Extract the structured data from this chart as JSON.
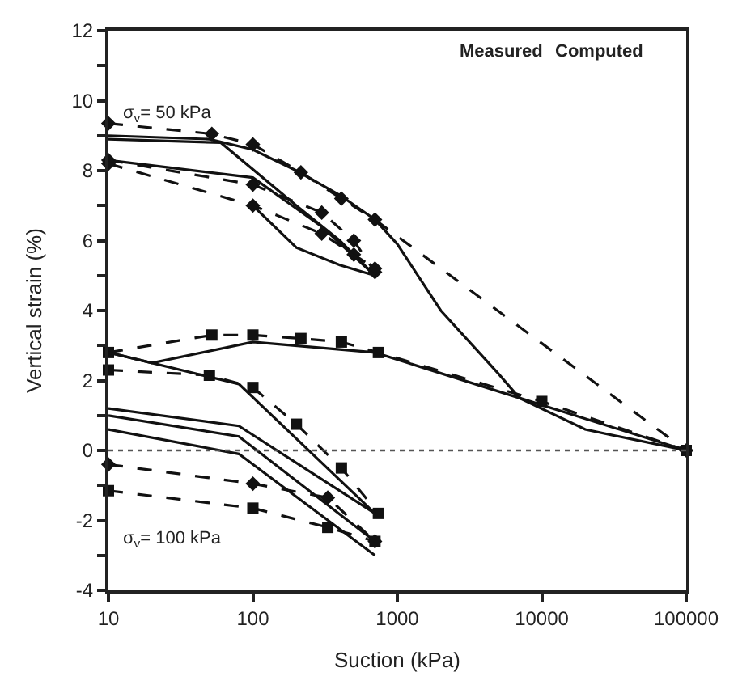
{
  "chart_data": {
    "type": "line",
    "xlabel": "Suction (kPa)",
    "ylabel": "Vertical strain (%)",
    "log": "x",
    "xlim": [
      10,
      100000
    ],
    "xticks": [
      10,
      100,
      1000,
      10000,
      100000
    ],
    "ylim": [
      -4,
      12
    ],
    "yticks": [
      -4,
      {
        "value": -3,
        "label": null
      },
      -2,
      {
        "value": -1,
        "label": null
      },
      0,
      {
        "value": 1,
        "label": null
      },
      2,
      {
        "value": 3,
        "label": null
      },
      4,
      {
        "value": 5,
        "label": null
      },
      6,
      {
        "value": 7,
        "label": null
      },
      8,
      {
        "value": 9,
        "label": null
      },
      10,
      {
        "value": 11,
        "label": null
      },
      12
    ],
    "ref_lines": [
      {
        "axis": "y",
        "value": 0,
        "line_style": "dotted",
        "color": "#555555"
      }
    ],
    "annotations": [
      "σ$_{v}$= 50 kPa",
      "σ$_{v}$= 100 kPa",
      "Measured",
      "Computed"
    ],
    "series": [
      {
        "color": "#111111",
        "marker": "diamond",
        "line_style": "dashed",
        "x": [
          10,
          52,
          100,
          215,
          410,
          700,
          100000
        ],
        "values": [
          9.35,
          9.05,
          8.75,
          7.95,
          7.2,
          6.6,
          0
        ]
      },
      {
        "color": "#111111",
        "marker": "diamond",
        "line_style": "dashed",
        "x": [
          10,
          100,
          300,
          500,
          700
        ],
        "values": [
          8.3,
          7.6,
          6.8,
          6.0,
          5.1
        ]
      },
      {
        "color": "#111111",
        "marker": "diamond",
        "line_style": "dashed",
        "x": [
          10,
          100,
          300,
          500,
          700
        ],
        "values": [
          8.2,
          7.0,
          6.2,
          5.6,
          5.2
        ]
      },
      {
        "color": "#111111",
        "marker": "square",
        "line_style": "dashed",
        "x": [
          10,
          52,
          100,
          215,
          410,
          740,
          10000,
          100000
        ],
        "values": [
          2.8,
          3.3,
          3.3,
          3.2,
          3.1,
          2.8,
          1.4,
          0
        ]
      },
      {
        "color": "#111111",
        "marker": "square",
        "line_style": "dashed",
        "x": [
          10,
          50,
          100,
          200,
          410,
          740
        ],
        "values": [
          2.3,
          2.15,
          1.8,
          0.75,
          -0.5,
          -1.8
        ]
      },
      {
        "color": "#111111",
        "marker": "diamond",
        "line_style": "dashed",
        "x": [
          10,
          100,
          330,
          700
        ],
        "values": [
          -0.4,
          -0.95,
          -1.35,
          -2.6
        ]
      },
      {
        "color": "#111111",
        "marker": "square",
        "line_style": "dashed",
        "x": [
          10,
          100,
          330,
          700
        ],
        "values": [
          -1.15,
          -1.65,
          -2.2,
          -2.6
        ]
      },
      {
        "color": "#111111",
        "marker": "none",
        "line_style": "solid",
        "x": [
          10,
          50,
          100,
          200,
          400,
          700,
          1000,
          2000,
          5000,
          7000,
          20000,
          100000
        ],
        "values": [
          9.0,
          8.9,
          8.6,
          8.0,
          7.3,
          6.6,
          5.9,
          4.0,
          2.2,
          1.5,
          0.6,
          0
        ]
      },
      {
        "color": "#111111",
        "marker": "none",
        "line_style": "solid",
        "x": [
          10,
          60,
          200,
          400,
          700
        ],
        "values": [
          8.9,
          8.8,
          7.0,
          6.0,
          5.0
        ]
      },
      {
        "color": "#111111",
        "marker": "none",
        "line_style": "solid",
        "x": [
          10,
          100,
          300,
          700,
          400,
          200,
          100
        ],
        "values": [
          8.3,
          7.8,
          6.4,
          5.0,
          5.3,
          5.8,
          7.0
        ]
      },
      {
        "color": "#111111",
        "marker": "none",
        "line_style": "solid",
        "x": [
          10,
          20,
          100,
          700,
          7000,
          100000
        ],
        "values": [
          2.8,
          2.5,
          3.1,
          2.8,
          1.5,
          0
        ]
      },
      {
        "color": "#111111",
        "marker": "none",
        "line_style": "solid",
        "x": [
          10,
          80,
          700
        ],
        "values": [
          2.8,
          1.9,
          -1.8
        ]
      },
      {
        "color": "#111111",
        "marker": "none",
        "line_style": "solid",
        "x": [
          10,
          80,
          700
        ],
        "values": [
          1.2,
          0.7,
          -1.8
        ]
      },
      {
        "color": "#111111",
        "marker": "none",
        "line_style": "solid",
        "x": [
          10,
          80,
          700
        ],
        "values": [
          1.0,
          0.4,
          -2.6
        ]
      },
      {
        "color": "#111111",
        "marker": "none",
        "line_style": "solid",
        "x": [
          10,
          80,
          700
        ],
        "values": [
          0.6,
          -0.1,
          -3.0
        ]
      }
    ]
  }
}
